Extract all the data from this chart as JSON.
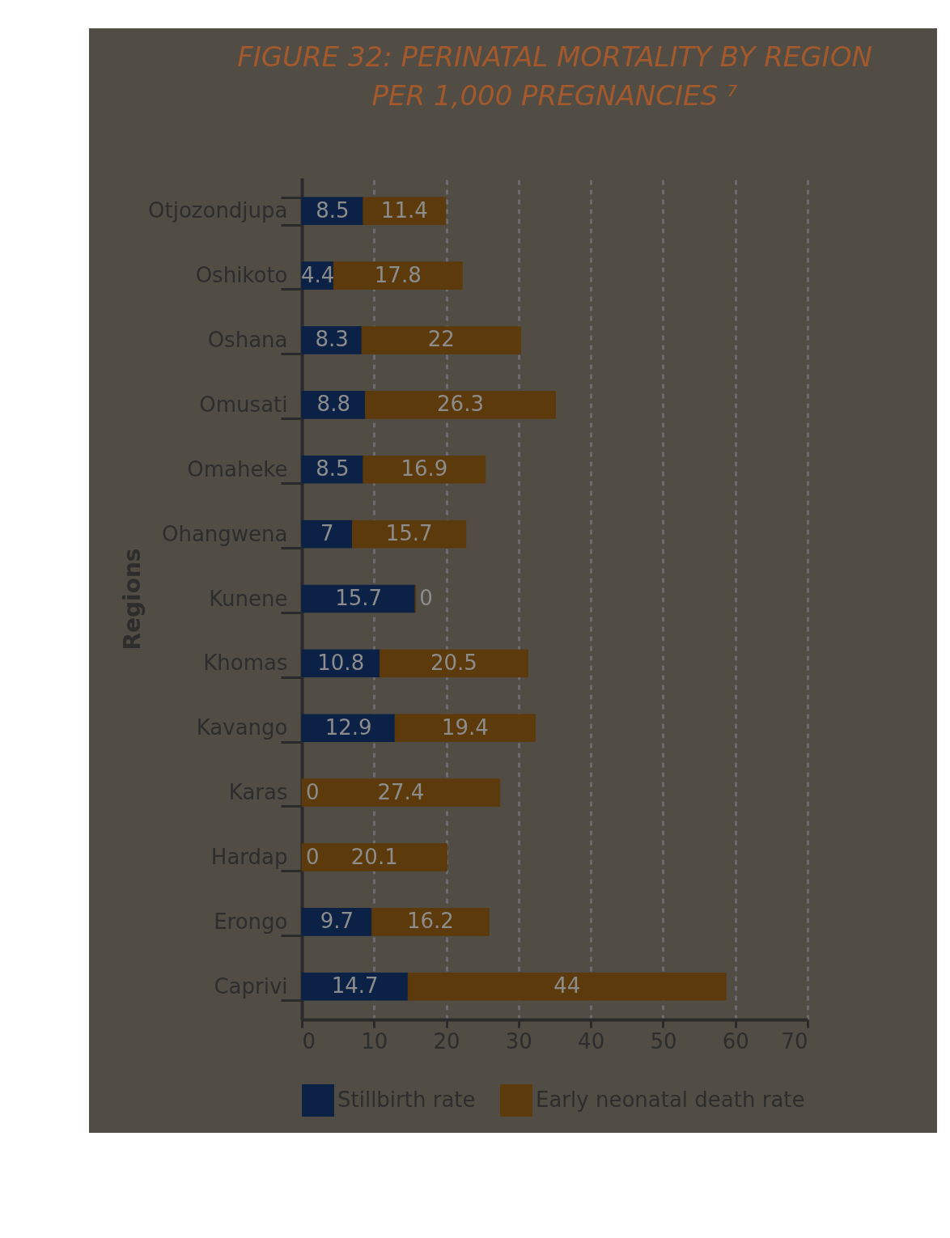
{
  "chart_data": {
    "type": "bar",
    "orientation": "horizontal",
    "stacked": true,
    "title": "FIGURE 32: PERINATAL MORTALITY BY REGION",
    "subtitle": "PER 1,000 PREGNANCIES ⁷",
    "ylabel": "Regions",
    "categories": [
      "Otjozondjupa",
      "Oshikoto",
      "Oshana",
      "Omusati",
      "Omaheke",
      "Ohangwena",
      "Kunene",
      "Khomas",
      "Kavango",
      "Karas",
      "Hardap",
      "Erongo",
      "Caprivi"
    ],
    "series": [
      {
        "name": "Stillbirth rate",
        "color": "#0b2145",
        "values": [
          8.5,
          4.4,
          8.3,
          8.8,
          8.5,
          7,
          15.7,
          10.8,
          12.9,
          0,
          0,
          9.7,
          14.7
        ],
        "value_labels": [
          "8.5",
          "4.4",
          "8.3",
          "8.8",
          "8.5",
          "7",
          "15.7",
          "10.8",
          "12.9",
          "0",
          "0",
          "9.7",
          "14.7"
        ]
      },
      {
        "name": "Early neonatal death rate",
        "color": "#5c3a0c",
        "values": [
          11.4,
          17.8,
          22,
          26.3,
          16.9,
          15.7,
          0,
          20.5,
          19.4,
          27.4,
          20.1,
          16.2,
          44
        ],
        "value_labels": [
          "11.4",
          "17.8",
          "22",
          "26.3",
          "16.9",
          "15.7",
          "0",
          "20.5",
          "19.4",
          "27.4",
          "20.1",
          "16.2",
          "44"
        ]
      }
    ],
    "xlim": [
      0,
      70
    ],
    "xticks": [
      0,
      10,
      20,
      30,
      40,
      50,
      60,
      70
    ],
    "grid": "x",
    "legend": "bottom"
  }
}
